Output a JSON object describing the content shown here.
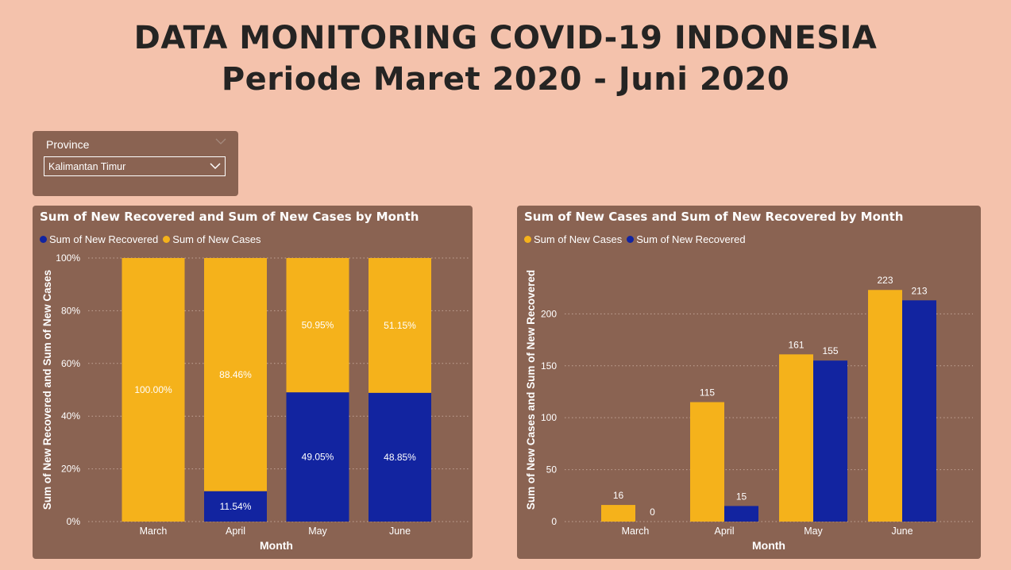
{
  "page": {
    "title_line1": "DATA MONITORING COVID-19 INDONESIA",
    "title_line2": "Periode Maret 2020 - Juni 2020"
  },
  "slicer": {
    "label": "Province",
    "selected": "Kalimantan Timur"
  },
  "colors": {
    "new_cases": "#f5b21b",
    "new_recovered": "#1224a0",
    "panel": "#8a6352",
    "background": "#f4c2ac"
  },
  "chart_data": [
    {
      "type": "bar",
      "stacking": "percent",
      "title": "Sum of New Recovered and Sum of New Cases by Month",
      "xlabel": "Month",
      "ylabel": "Sum of New Recovered and Sum of New Cases",
      "ylim": [
        0,
        100
      ],
      "yticks": [
        "0%",
        "20%",
        "40%",
        "60%",
        "80%",
        "100%"
      ],
      "ytick_values": [
        0,
        20,
        40,
        60,
        80,
        100
      ],
      "legend_position": "top-left",
      "grid": true,
      "categories": [
        "March",
        "April",
        "May",
        "June"
      ],
      "series": [
        {
          "name": "Sum of New Recovered",
          "color": "#1224a0",
          "values": [
            0,
            11.54,
            49.05,
            48.85
          ],
          "labels": [
            "",
            "11.54%",
            "49.05%",
            "48.85%"
          ]
        },
        {
          "name": "Sum of New Cases",
          "color": "#f5b21b",
          "values": [
            100,
            88.46,
            50.95,
            51.15
          ],
          "labels": [
            "100.00%",
            "88.46%",
            "50.95%",
            "51.15%"
          ]
        }
      ]
    },
    {
      "type": "bar",
      "stacking": "none",
      "title": "Sum of New Cases and Sum of New Recovered by Month",
      "xlabel": "Month",
      "ylabel": "Sum of New Cases and Sum of New Recovered",
      "ylim": [
        0,
        240
      ],
      "yticks": [
        "0",
        "50",
        "100",
        "150",
        "200"
      ],
      "ytick_values": [
        0,
        50,
        100,
        150,
        200
      ],
      "legend_position": "top-left",
      "grid": true,
      "categories": [
        "March",
        "April",
        "May",
        "June"
      ],
      "series": [
        {
          "name": "Sum of New Cases",
          "color": "#f5b21b",
          "values": [
            16,
            115,
            161,
            223
          ],
          "labels": [
            "16",
            "115",
            "161",
            "223"
          ]
        },
        {
          "name": "Sum of New Recovered",
          "color": "#1224a0",
          "values": [
            0,
            15,
            155,
            213
          ],
          "labels": [
            "0",
            "15",
            "155",
            "213"
          ]
        }
      ]
    }
  ]
}
